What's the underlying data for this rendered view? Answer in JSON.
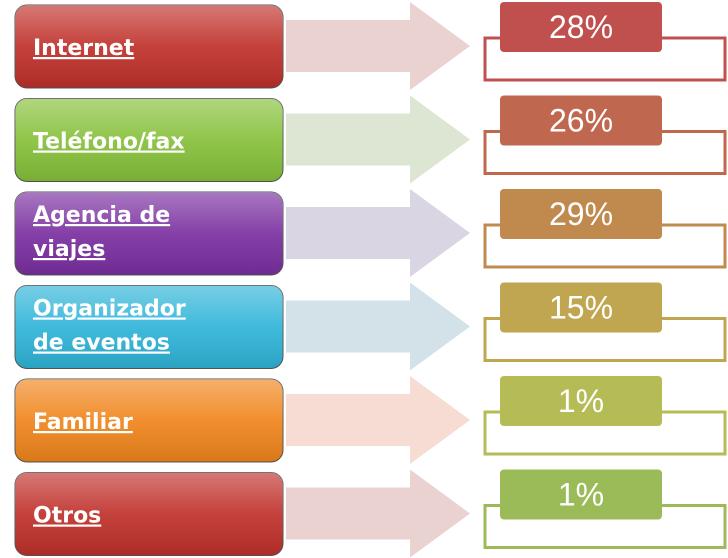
{
  "items": [
    {
      "label": [
        "Internet"
      ],
      "value": "28%"
    },
    {
      "label": [
        "Teléfono/fax"
      ],
      "value": "26%"
    },
    {
      "label": [
        "Agencia de",
        "viajes"
      ],
      "value": "29%"
    },
    {
      "label": [
        "Organizador",
        "de eventos"
      ],
      "value": "15%"
    },
    {
      "label": [
        "Familiar"
      ],
      "value": "1%"
    },
    {
      "label": [
        "Otros"
      ],
      "value": "1%"
    }
  ]
}
